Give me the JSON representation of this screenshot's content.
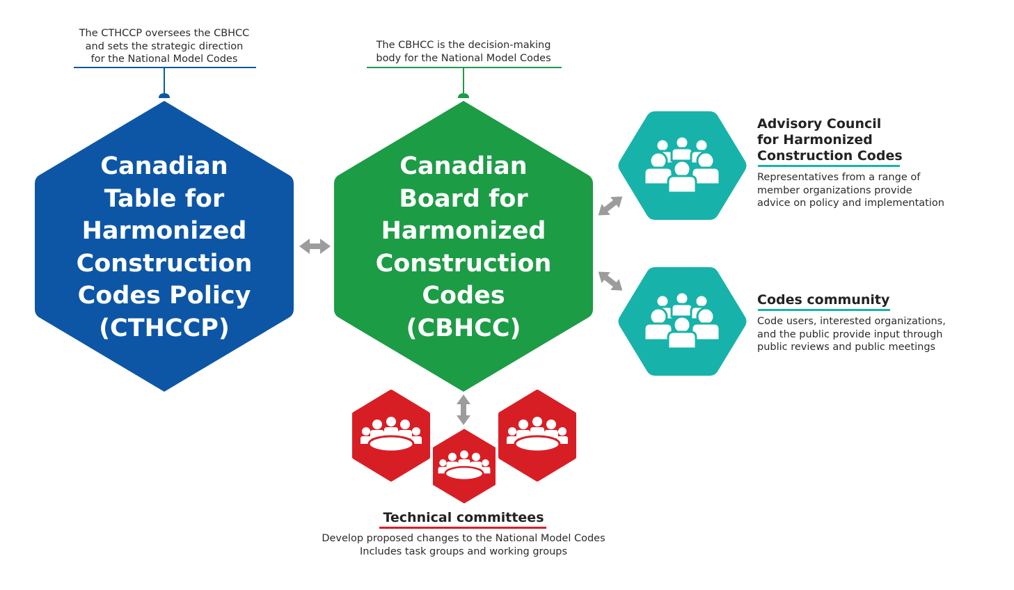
{
  "colors": {
    "cthccp_blue": "#0d56a6",
    "cbhcc_green": "#1c9c45",
    "advisory_teal": "#17b3aa",
    "committee_red": "#d81e25",
    "arrow_gray": "#9c9c9c",
    "text_dark": "#222222"
  },
  "cthccp": {
    "note_lines": [
      "The CTHCCP oversees the CBHCC",
      "and sets the strategic direction",
      "for the National Model Codes"
    ],
    "title_lines": [
      "Canadian",
      "Table for",
      "Harmonized",
      "Construction",
      "Codes Policy",
      "(CTHCCP)"
    ]
  },
  "cbhcc": {
    "note_lines": [
      "The CBHCC is the decision-making",
      "body for the National Model Codes"
    ],
    "title_lines": [
      "Canadian",
      "Board for",
      "Harmonized",
      "Construction",
      "Codes",
      "(CBHCC)"
    ]
  },
  "advisory": {
    "icon": "group-people-icon",
    "title_lines": [
      "Advisory Council",
      "for Harmonized",
      "Construction Codes"
    ],
    "desc_lines": [
      "Representatives from a range of",
      "member organizations provide",
      "advice on policy and implementation"
    ]
  },
  "community": {
    "icon": "group-people-icon",
    "title_lines": [
      "Codes community"
    ],
    "desc_lines": [
      "Code users, interested organizations,",
      "and the public provide input through",
      "public reviews and public meetings"
    ]
  },
  "technical": {
    "icon": "meeting-table-icon",
    "title": "Technical committees",
    "desc_lines": [
      "Develop proposed changes to the National Model Codes",
      "Includes task groups and working groups"
    ]
  },
  "connectors": {
    "icon": "double-arrow-icon"
  }
}
